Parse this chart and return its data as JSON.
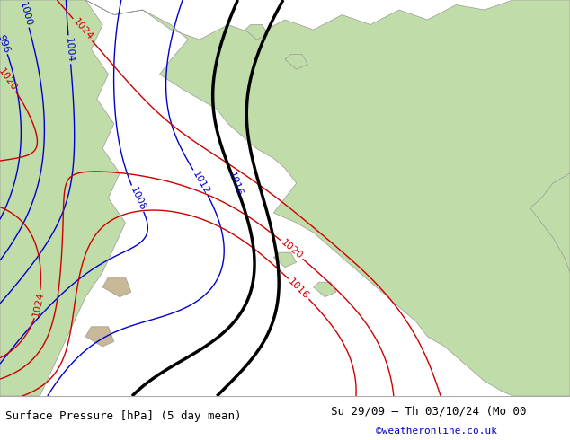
{
  "title_left": "Surface Pressure [hPa] (5 day mean)",
  "title_right": "Su 29/09 – Th 03/10/24 (Mo 00",
  "credit": "©weatheronline.co.uk",
  "credit_color": "#0000bb",
  "bg_color": "#c8d4e0",
  "land_color": "#c0dca8",
  "sea_color": "#c8d4e0",
  "text_color": "#000000",
  "blue_color": "#0000cc",
  "red_color": "#cc0000",
  "black_color": "#000000",
  "bottom_bar_color": "#ffffff",
  "title_fontsize": 9,
  "credit_fontsize": 8
}
